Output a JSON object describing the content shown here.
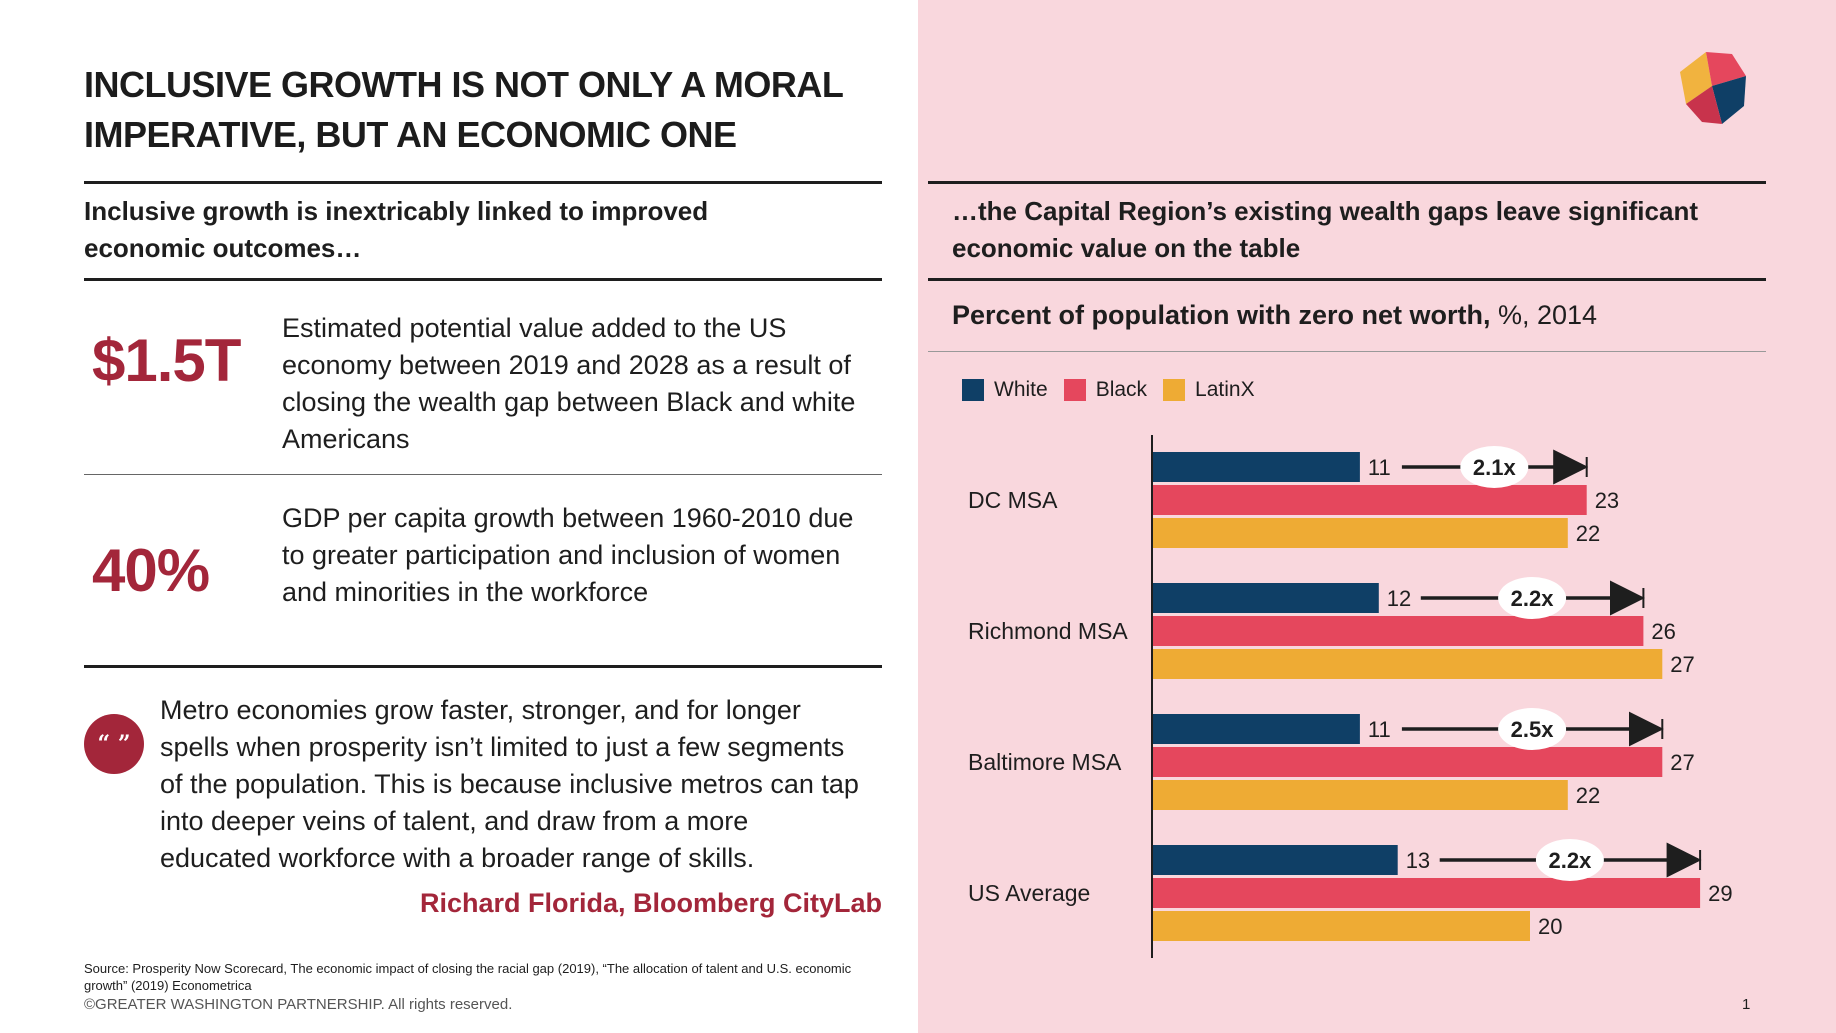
{
  "left": {
    "title": [
      "INCLUSIVE GROWTH IS NOT ONLY A MORAL",
      "IMPERATIVE, BUT AN ECONOMIC ONE"
    ],
    "subhead": [
      "Inclusive growth is inextricably linked to improved",
      "economic outcomes…"
    ],
    "stats": [
      {
        "value": "$1.5T",
        "text": [
          "Estimated potential value added to the US",
          "economy between 2019 and 2028 as a result of",
          "closing the wealth gap between Black and white",
          "Americans"
        ]
      },
      {
        "value": "40%",
        "text": [
          "GDP per capita growth between 1960-2010 due",
          "to greater participation and inclusion of women",
          "and minorities in the workforce"
        ]
      }
    ],
    "quote": {
      "icon": "quote-icon",
      "mark": "“ ”",
      "lines": [
        "Metro economies grow faster, stronger, and for longer",
        "spells when prosperity isn’t limited to just a few segments",
        "of the population. This is because inclusive metros can tap",
        "into deeper veins of talent, and draw from a more",
        "educated workforce with a broader range of skills."
      ],
      "author": "Richard Florida, Bloomberg CityLab"
    },
    "source": [
      "Source: Prosperity Now Scorecard, The economic impact of closing the racial gap (2019), “The allocation of talent and U.S. economic",
      "growth” (2019) Econometrica"
    ],
    "copyright": "©GREATER WASHINGTON PARTNERSHIP. All rights reserved."
  },
  "right": {
    "subhead": [
      "…the Capital Region’s existing wealth gaps leave significant",
      "economic value on the table"
    ],
    "logo_icon": "partnership-logo-icon"
  },
  "page_number": "1",
  "colors": {
    "accent": "#a3263a",
    "white": "#0f3f66",
    "black": "#e5475d",
    "latinx": "#eeab34",
    "panel": "#f9d7dd"
  },
  "chart_data": {
    "type": "bar",
    "orientation": "horizontal",
    "title": "Percent of population with zero net worth,",
    "title_units": " %, 2014",
    "categories": [
      "DC MSA",
      "Richmond MSA",
      "Baltimore MSA",
      "US Average"
    ],
    "series": [
      {
        "name": "White",
        "color": "#0f3f66",
        "values": [
          11,
          12,
          11,
          13
        ]
      },
      {
        "name": "Black",
        "color": "#e5475d",
        "values": [
          23,
          26,
          27,
          29
        ]
      },
      {
        "name": "LatinX",
        "color": "#eeab34",
        "values": [
          22,
          27,
          22,
          20
        ]
      }
    ],
    "ratios": [
      "2.1x",
      "2.2x",
      "2.5x",
      "2.2x"
    ],
    "xlim": [
      0,
      30
    ],
    "legend": "top-left",
    "grid": false
  }
}
